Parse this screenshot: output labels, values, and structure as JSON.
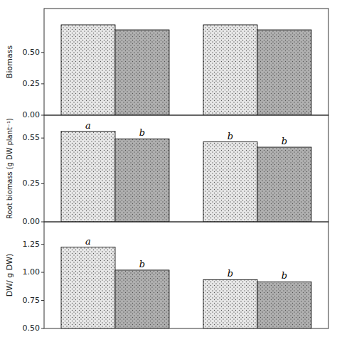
{
  "chart_data": [
    {
      "type": "bar",
      "ylabel": "Biomass",
      "categories": [
        null,
        null
      ],
      "series": [
        {
          "color": "#e8e8e8",
          "values": [
            0.72,
            0.72
          ]
        },
        {
          "color": "#b0b0b0",
          "values": [
            0.68,
            0.68
          ]
        }
      ],
      "ylim": [
        0,
        0.85
      ],
      "yticks": [
        {
          "value": 0,
          "label": "0.00"
        },
        0.25,
        {
          "value": 0.5,
          "label": "0.50"
        }
      ],
      "grid": false,
      "tick_labels": "y"
    },
    {
      "type": "bar",
      "ylabel": "Root biomass (g DW plant⁻¹)",
      "categories": [
        null,
        null
      ],
      "series": [
        {
          "color": "#e8e8e8",
          "values": [
            0.595,
            0.525
          ]
        },
        {
          "color": "#b0b0b0",
          "values": [
            0.545,
            0.49
          ]
        }
      ],
      "ylim": [
        0,
        0.7
      ],
      "yticks": [
        {
          "value": 0,
          "label": "0.00"
        },
        0.25,
        0.55
      ],
      "annotations": [
        {
          "text": "a",
          "series": 0,
          "category": 0
        },
        {
          "text": "b",
          "series": 1,
          "category": 0
        },
        {
          "text": "b",
          "series": 0,
          "category": 1
        },
        {
          "text": "b",
          "series": 1,
          "category": 1
        }
      ],
      "grid": false,
      "tick_labels": "y"
    },
    {
      "type": "bar",
      "ylabel": "DW/ g DW)",
      "categories": [
        null,
        null
      ],
      "series": [
        {
          "color": "#e8e8e8",
          "values": [
            1.225,
            0.935
          ]
        },
        {
          "color": "#b0b0b0",
          "values": [
            1.02,
            0.915
          ]
        }
      ],
      "ylim": [
        0.5,
        1.45
      ],
      "yticks": [
        {
          "value": 0.5,
          "label": "0.50"
        },
        0.75,
        {
          "value": 1,
          "label": "1.00"
        },
        1.25
      ],
      "annotations": [
        {
          "text": "a",
          "series": 0,
          "category": 0
        },
        {
          "text": "b",
          "series": 1,
          "category": 0
        },
        {
          "text": "b",
          "series": 0,
          "category": 1
        },
        {
          "text": "b",
          "series": 1,
          "category": 1
        }
      ],
      "grid": false,
      "tick_labels": "y"
    }
  ]
}
